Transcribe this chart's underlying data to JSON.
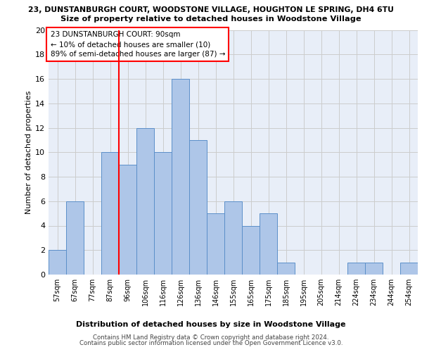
{
  "title_line1": "23, DUNSTANBURGH COURT, WOODSTONE VILLAGE, HOUGHTON LE SPRING, DH4 6TU",
  "title_line2": "Size of property relative to detached houses in Woodstone Village",
  "xlabel": "Distribution of detached houses by size in Woodstone Village",
  "ylabel": "Number of detached properties",
  "footer1": "Contains HM Land Registry data © Crown copyright and database right 2024.",
  "footer2": "Contains public sector information licensed under the Open Government Licence v3.0.",
  "annotation_line1": "23 DUNSTANBURGH COURT: 90sqm",
  "annotation_line2": "← 10% of detached houses are smaller (10)",
  "annotation_line3": "89% of semi-detached houses are larger (87) →",
  "bar_labels": [
    "57sqm",
    "67sqm",
    "77sqm",
    "87sqm",
    "96sqm",
    "106sqm",
    "116sqm",
    "126sqm",
    "136sqm",
    "146sqm",
    "155sqm",
    "165sqm",
    "175sqm",
    "185sqm",
    "195sqm",
    "205sqm",
    "214sqm",
    "224sqm",
    "234sqm",
    "244sqm",
    "254sqm"
  ],
  "bar_values": [
    2,
    6,
    0,
    10,
    9,
    12,
    10,
    16,
    11,
    5,
    6,
    4,
    5,
    1,
    0,
    0,
    0,
    1,
    1,
    0,
    1
  ],
  "bar_color": "#aec6e8",
  "bar_edge_color": "#5b8fc9",
  "vline_x": 3.5,
  "vline_color": "red",
  "ylim": [
    0,
    20
  ],
  "yticks": [
    0,
    2,
    4,
    6,
    8,
    10,
    12,
    14,
    16,
    18,
    20
  ],
  "annotation_box_color": "red",
  "grid_color": "#cccccc",
  "background_color": "#e8eef8"
}
